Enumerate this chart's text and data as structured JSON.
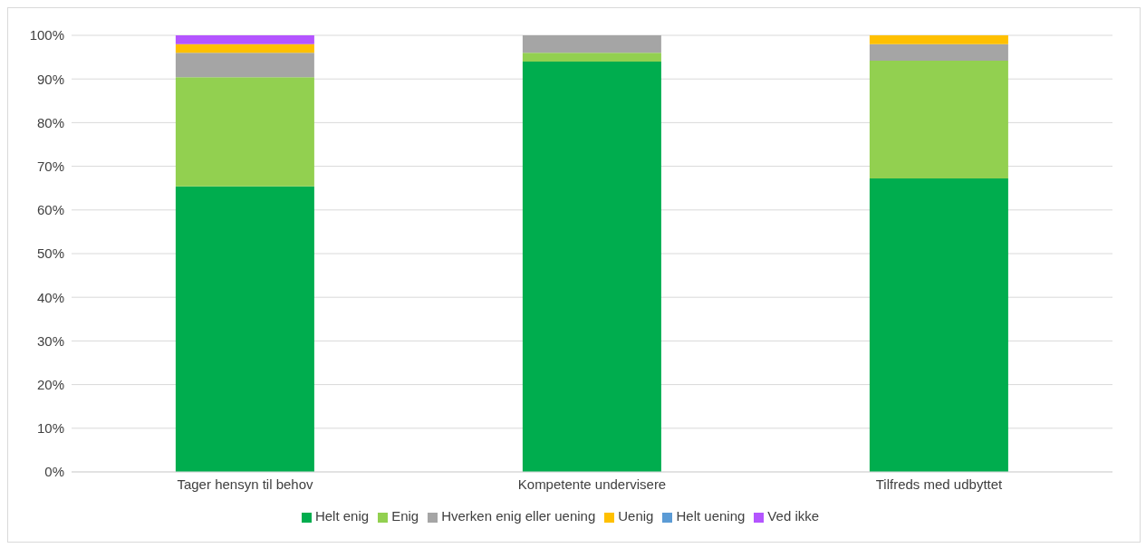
{
  "chart_data": {
    "type": "bar",
    "stacked": true,
    "categories": [
      "Tager hensyn til behov",
      "Kompetente undervisere",
      "Tilfreds med udbyttet"
    ],
    "series": [
      {
        "name": "Helt enig",
        "color": "#00ad4e",
        "values": [
          65.4,
          94,
          67.2
        ]
      },
      {
        "name": "Enig",
        "color": "#92d050",
        "values": [
          25,
          2,
          27
        ]
      },
      {
        "name": "Hverken enig eller uening",
        "color": "#a5a5a5",
        "values": [
          5.6,
          4,
          3.8
        ]
      },
      {
        "name": "Uenig",
        "color": "#ffc000",
        "values": [
          2,
          0,
          2
        ]
      },
      {
        "name": "Helt uening",
        "color": "#5b9bd5",
        "values": [
          0,
          0,
          0
        ]
      },
      {
        "name": "Ved ikke",
        "color": "#b455ff",
        "values": [
          2,
          0,
          0
        ]
      }
    ],
    "ylim": [
      0,
      100
    ],
    "yticks": [
      {
        "value": 0,
        "label": "0%"
      },
      {
        "value": 10,
        "label": "10%"
      },
      {
        "value": 20,
        "label": "20%"
      },
      {
        "value": 30,
        "label": "30%"
      },
      {
        "value": 40,
        "label": "40%"
      },
      {
        "value": 50,
        "label": "50%"
      },
      {
        "value": 60,
        "label": "60%"
      },
      {
        "value": 70,
        "label": "70%"
      },
      {
        "value": 80,
        "label": "80%"
      },
      {
        "value": 90,
        "label": "90%"
      },
      {
        "value": 100,
        "label": "100%"
      }
    ],
    "grid": "y",
    "legend": "bottom"
  }
}
